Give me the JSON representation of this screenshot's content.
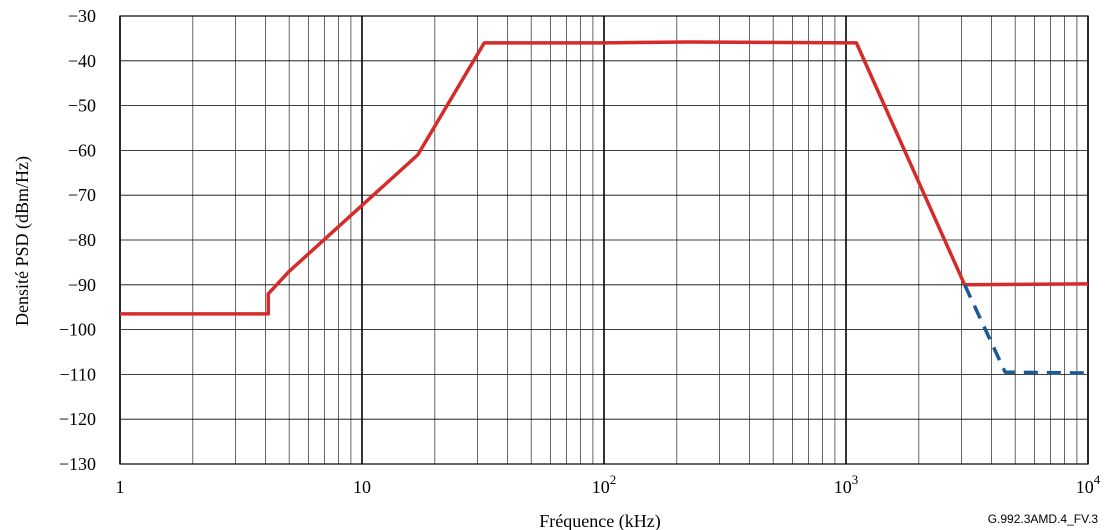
{
  "chart_data": {
    "type": "line",
    "xscale": "log",
    "xlim": [
      1,
      10000
    ],
    "ylim": [
      -130,
      -30
    ],
    "grid": true,
    "title": "",
    "xlabel": "Fréquence (kHz)",
    "ylabel": "Densité PSD (dBm/Hz)",
    "y_ticks": [
      -30,
      -40,
      -50,
      -60,
      -70,
      -80,
      -90,
      -100,
      -110,
      -120,
      -130
    ],
    "x_ticks": [
      {
        "value": 1,
        "base": "1",
        "exp": ""
      },
      {
        "value": 10,
        "base": "10",
        "exp": ""
      },
      {
        "value": 100,
        "base": "10",
        "exp": "2"
      },
      {
        "value": 1000,
        "base": "10",
        "exp": "3"
      },
      {
        "value": 10000,
        "base": "10",
        "exp": "4"
      }
    ],
    "series": [
      {
        "color": "#d62b2b",
        "style": "solid",
        "points": [
          [
            1,
            -96.5
          ],
          [
            4.1,
            -96.5
          ],
          [
            4.1,
            -92
          ],
          [
            5,
            -87
          ],
          [
            17,
            -61
          ],
          [
            32,
            -36
          ],
          [
            100,
            -36
          ],
          [
            224,
            -35.8
          ],
          [
            1104,
            -36
          ],
          [
            3093,
            -90
          ],
          [
            10000,
            -89.8
          ]
        ]
      },
      {
        "color": "#1a5896",
        "style": "dashed",
        "points": [
          [
            3093,
            -90
          ],
          [
            4545,
            -109.5
          ],
          [
            10000,
            -109.7
          ]
        ]
      }
    ]
  },
  "figure_ref": "G.992.3AMD.4_FV.3"
}
